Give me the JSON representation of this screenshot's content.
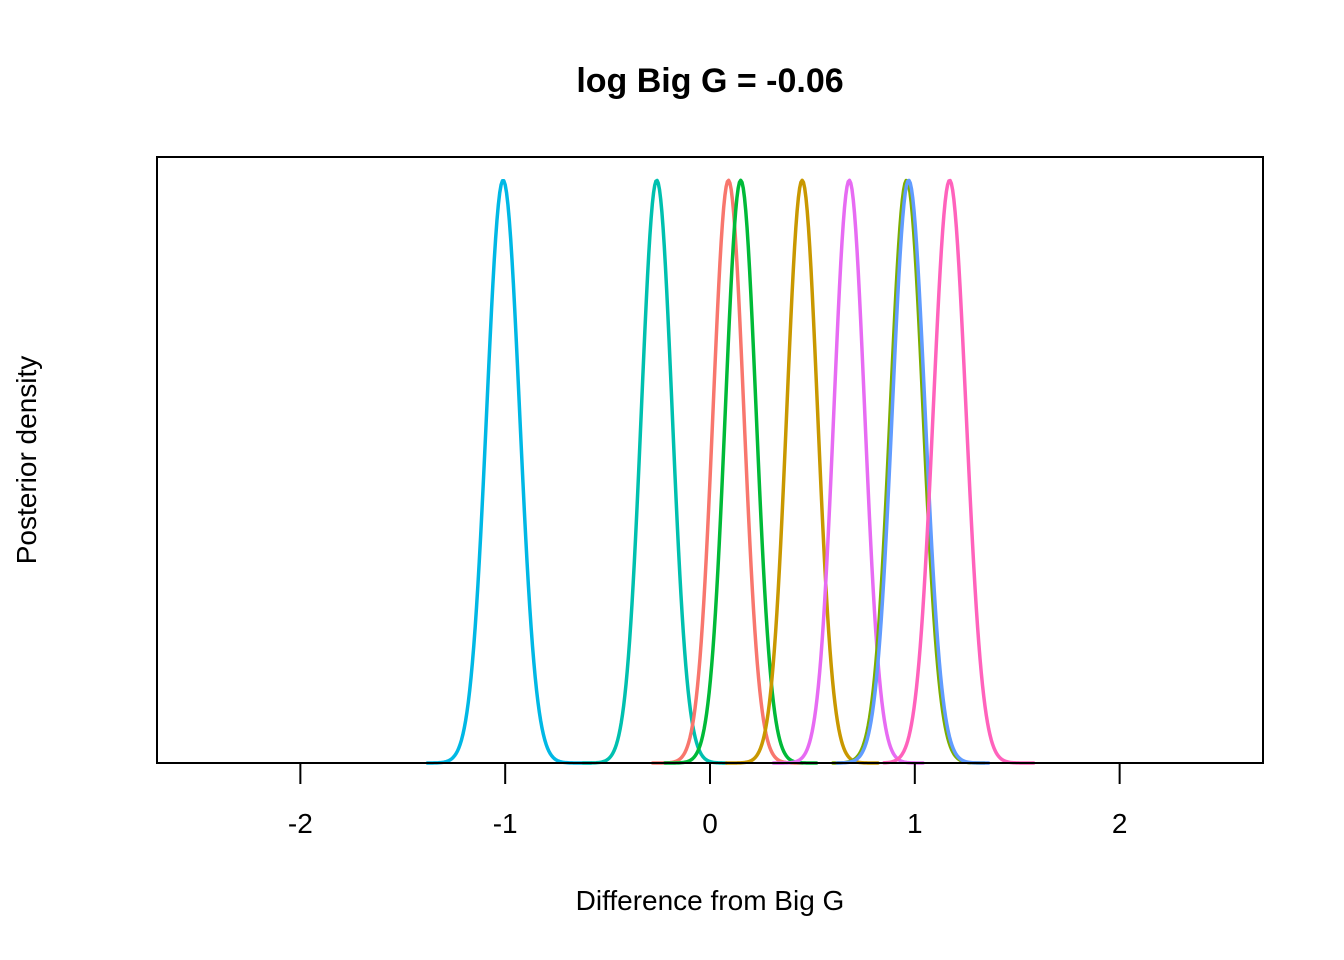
{
  "chart_data": {
    "type": "line",
    "title": "log Big G = -0.06",
    "xlabel": "Difference from Big G",
    "ylabel": "Posterior density",
    "xlim": [
      -2.7,
      2.7
    ],
    "ylim": [
      0,
      1.04
    ],
    "x_ticks": [
      -2,
      -1,
      0,
      1,
      2
    ],
    "x_tick_labels": [
      "-2",
      "-1",
      "0",
      "1",
      "2"
    ],
    "y_ticks_shown": false,
    "grid": false,
    "legend": "none",
    "series": [
      {
        "color": "#00B8E5",
        "mean": -1.01,
        "sd": 0.08,
        "x_range": [
          -1.38,
          -0.58
        ]
      },
      {
        "color": "#00C0AF",
        "mean": -0.26,
        "sd": 0.075,
        "x_range": [
          -0.62,
          0.08
        ]
      },
      {
        "color": "#F8766D",
        "mean": 0.09,
        "sd": 0.075,
        "x_range": [
          -0.28,
          0.45
        ]
      },
      {
        "color": "#00BA38",
        "mean": 0.15,
        "sd": 0.075,
        "x_range": [
          -0.22,
          0.52
        ]
      },
      {
        "color": "#C99800",
        "mean": 0.45,
        "sd": 0.075,
        "x_range": [
          0.08,
          0.82
        ]
      },
      {
        "color": "#E76BF3",
        "mean": 0.68,
        "sd": 0.075,
        "x_range": [
          0.31,
          1.04
        ]
      },
      {
        "color": "#7CAE00",
        "mean": 0.96,
        "sd": 0.08,
        "x_range": [
          0.6,
          1.34
        ]
      },
      {
        "color": "#619CFF",
        "mean": 0.97,
        "sd": 0.08,
        "x_range": [
          0.62,
          1.36
        ]
      },
      {
        "color": "#FF62BC",
        "mean": 1.17,
        "sd": 0.08,
        "x_range": [
          0.85,
          1.58
        ]
      }
    ]
  }
}
